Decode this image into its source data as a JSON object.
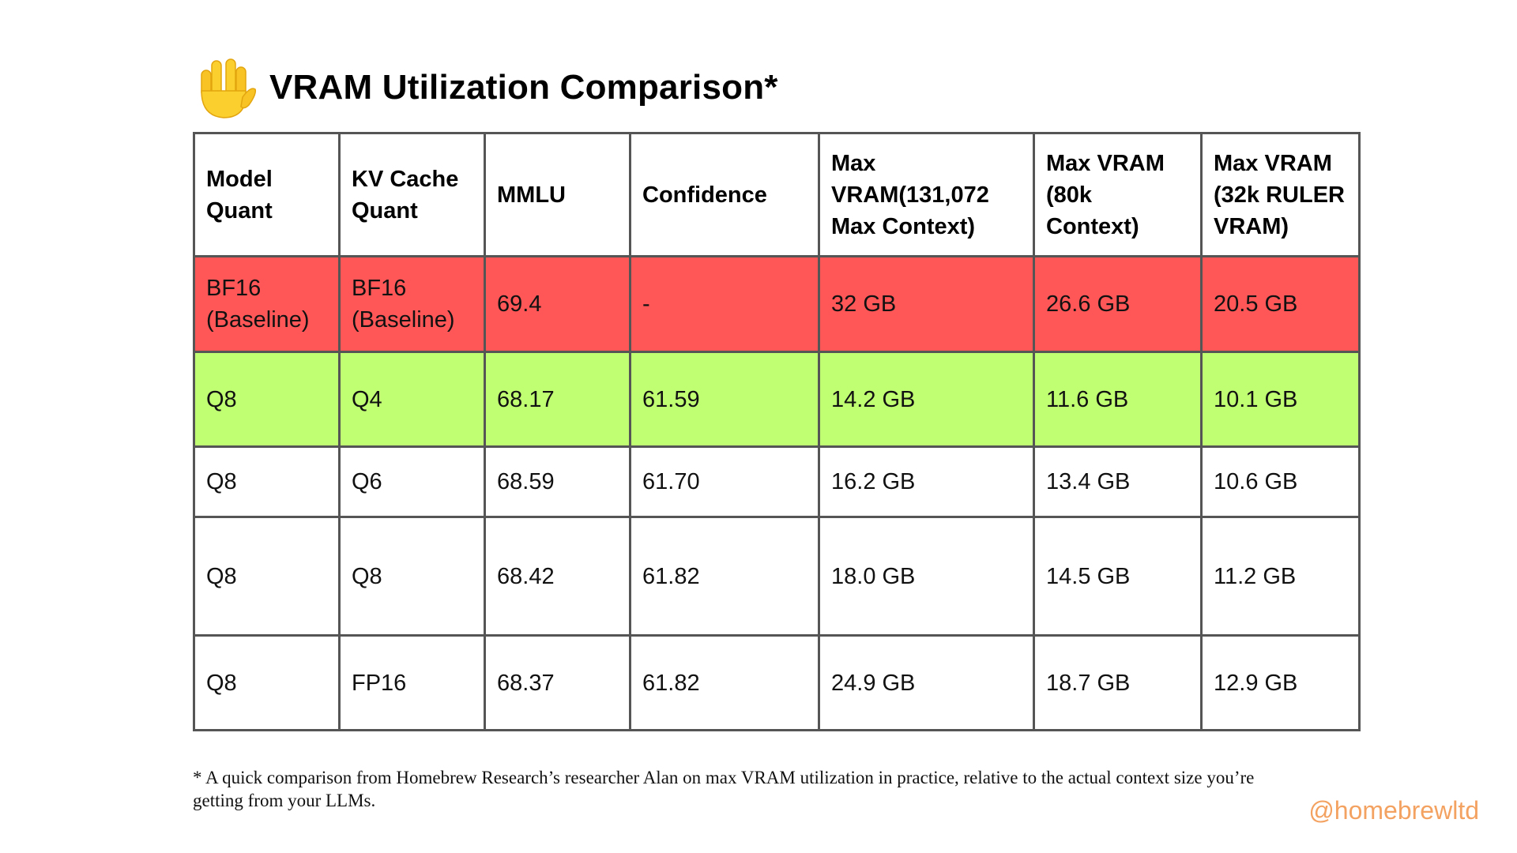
{
  "title": {
    "icon": "vulcan-salute-hand-icon",
    "text": "VRAM Utilization Comparison*"
  },
  "table": {
    "headers": [
      "Model Quant",
      "KV Cache Quant",
      "MMLU",
      "Confidence",
      "Max VRAM(131,072 Max Context)",
      "Max VRAM (80k Context)",
      "Max VRAM (32k RULER VRAM)"
    ],
    "rows": [
      [
        "BF16 (Baseline)",
        "BF16 (Baseline)",
        "69.4",
        "-",
        "32 GB",
        "26.6 GB",
        "20.5 GB"
      ],
      [
        "Q8",
        "Q4",
        "68.17",
        "61.59",
        "14.2 GB",
        "11.6 GB",
        "10.1 GB"
      ],
      [
        "Q8",
        "Q6",
        "68.59",
        "61.70",
        "16.2 GB",
        "13.4 GB",
        "10.6 GB"
      ],
      [
        "Q8",
        "Q8",
        "68.42",
        "61.82",
        "18.0 GB",
        "14.5 GB",
        "11.2 GB"
      ],
      [
        "Q8",
        "FP16",
        "68.37",
        "61.82",
        "24.9 GB",
        "18.7 GB",
        "12.9 GB"
      ]
    ],
    "row_colors": {
      "baseline_red": "#ff5757",
      "highlight_green": "#c1ff72",
      "plain": "#ffffff"
    }
  },
  "footnote": "* A quick comparison from Homebrew Research’s researcher Alan on max VRAM utilization in practice, relative to the actual context size you’re getting from your LLMs.",
  "handle": "@homebrewltd",
  "colors": {
    "handle": "#f4a261",
    "border": "#555555"
  }
}
